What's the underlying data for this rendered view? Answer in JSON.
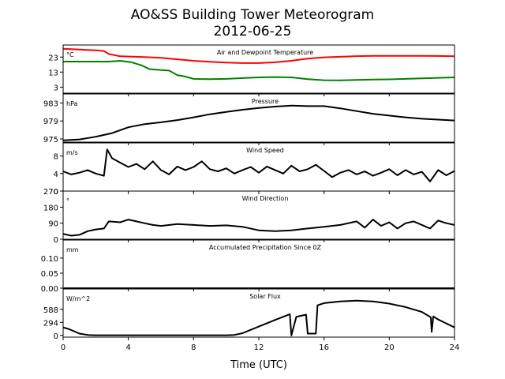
{
  "title": "AO&SS Building Tower Meteorogram",
  "subtitle": "2012-06-25",
  "xlabel": "Time (UTC)",
  "chart_data": [
    {
      "type": "line",
      "title": "Air and Dewpoint Temperature",
      "unit": "°C",
      "x_ticks": [
        0,
        4,
        8,
        12,
        16,
        20,
        24
      ],
      "xlim": [
        0,
        24
      ],
      "ylim": [
        -1,
        31
      ],
      "y_ticks": [
        3,
        13,
        23
      ],
      "series": [
        {
          "color": "#ff0000",
          "points": [
            [
              0,
              28.5
            ],
            [
              1,
              28
            ],
            [
              2,
              27.5
            ],
            [
              2.5,
              27
            ],
            [
              2.8,
              25
            ],
            [
              3.5,
              23.5
            ],
            [
              5,
              23
            ],
            [
              6,
              22.5
            ],
            [
              7,
              21.5
            ],
            [
              8,
              20.5
            ],
            [
              9,
              19.8
            ],
            [
              10,
              19.3
            ],
            [
              11,
              19
            ],
            [
              12,
              19
            ],
            [
              13,
              19.5
            ],
            [
              14,
              20.5
            ],
            [
              15,
              22
            ],
            [
              16,
              22.8
            ],
            [
              17,
              23.2
            ],
            [
              18,
              23.6
            ],
            [
              19,
              23.8
            ],
            [
              20,
              23.8
            ],
            [
              21,
              23.8
            ],
            [
              22,
              23.8
            ],
            [
              23,
              23.7
            ],
            [
              24,
              23.5
            ]
          ]
        },
        {
          "color": "#008000",
          "points": [
            [
              0,
              20
            ],
            [
              1,
              20
            ],
            [
              2,
              20
            ],
            [
              2.8,
              20
            ],
            [
              3.5,
              20.5
            ],
            [
              4.2,
              19.5
            ],
            [
              4.8,
              17.5
            ],
            [
              5.3,
              15
            ],
            [
              6,
              14.3
            ],
            [
              6.5,
              14
            ],
            [
              7,
              11
            ],
            [
              7.5,
              10
            ],
            [
              8,
              8.5
            ],
            [
              9,
              8.3
            ],
            [
              10,
              8.5
            ],
            [
              11,
              9
            ],
            [
              12,
              9.5
            ],
            [
              13,
              9.7
            ],
            [
              14,
              9.5
            ],
            [
              15,
              8.3
            ],
            [
              16,
              7.6
            ],
            [
              17,
              7.5
            ],
            [
              18,
              7.8
            ],
            [
              19,
              8
            ],
            [
              20,
              8.2
            ],
            [
              21,
              8.5
            ],
            [
              22,
              8.8
            ],
            [
              23,
              9.2
            ],
            [
              24,
              9.5
            ]
          ]
        }
      ]
    },
    {
      "type": "line",
      "title": "Pressure",
      "unit": "hPa",
      "x_ticks": [
        0,
        4,
        8,
        12,
        16,
        20,
        24
      ],
      "xlim": [
        0,
        24
      ],
      "ylim": [
        974.3,
        985.0
      ],
      "y_ticks": [
        975,
        979,
        983
      ],
      "series": [
        {
          "color": "#000000",
          "points": [
            [
              0,
              974.7
            ],
            [
              1,
              974.9
            ],
            [
              2,
              975.5
            ],
            [
              3,
              976.3
            ],
            [
              4,
              977.6
            ],
            [
              5,
              978.3
            ],
            [
              6,
              978.7
            ],
            [
              7,
              979.2
            ],
            [
              8,
              979.8
            ],
            [
              9,
              980.5
            ],
            [
              10,
              981.0
            ],
            [
              11,
              981.5
            ],
            [
              12,
              981.9
            ],
            [
              13,
              982.2
            ],
            [
              14,
              982.4
            ],
            [
              15,
              982.3
            ],
            [
              16,
              982.3
            ],
            [
              17,
              981.8
            ],
            [
              18,
              981.2
            ],
            [
              19,
              980.6
            ],
            [
              20,
              980.2
            ],
            [
              21,
              979.8
            ],
            [
              22,
              979.5
            ],
            [
              23,
              979.3
            ],
            [
              24,
              979.1
            ]
          ]
        }
      ]
    },
    {
      "type": "line",
      "title": "Wind Speed",
      "unit": "m/s",
      "x_ticks": [
        0,
        4,
        8,
        12,
        16,
        20,
        24
      ],
      "xlim": [
        0,
        24
      ],
      "ylim": [
        0,
        11
      ],
      "y_ticks": [
        0,
        4,
        8
      ],
      "series": [
        {
          "color": "#000000",
          "points": [
            [
              0,
              4.5
            ],
            [
              0.5,
              3.8
            ],
            [
              1,
              4.2
            ],
            [
              1.5,
              4.8
            ],
            [
              2,
              4.0
            ],
            [
              2.5,
              3.5
            ],
            [
              2.7,
              9.5
            ],
            [
              3,
              7.5
            ],
            [
              3.5,
              6.5
            ],
            [
              4,
              5.5
            ],
            [
              4.5,
              6.2
            ],
            [
              5,
              5.0
            ],
            [
              5.5,
              6.8
            ],
            [
              6,
              4.8
            ],
            [
              6.5,
              3.8
            ],
            [
              7,
              5.6
            ],
            [
              7.5,
              4.8
            ],
            [
              8,
              5.5
            ],
            [
              8.5,
              6.8
            ],
            [
              9,
              5.0
            ],
            [
              9.5,
              4.5
            ],
            [
              10,
              5.2
            ],
            [
              10.5,
              4.0
            ],
            [
              11,
              4.8
            ],
            [
              11.5,
              5.5
            ],
            [
              12,
              4.2
            ],
            [
              12.5,
              5.6
            ],
            [
              13,
              4.8
            ],
            [
              13.5,
              4.0
            ],
            [
              14,
              5.8
            ],
            [
              14.5,
              4.5
            ],
            [
              15,
              5.0
            ],
            [
              15.5,
              6.0
            ],
            [
              16,
              4.6
            ],
            [
              16.5,
              3.2
            ],
            [
              17,
              4.2
            ],
            [
              17.5,
              4.8
            ],
            [
              18,
              3.8
            ],
            [
              18.5,
              4.5
            ],
            [
              19,
              3.5
            ],
            [
              19.5,
              4.2
            ],
            [
              20,
              5.0
            ],
            [
              20.5,
              3.6
            ],
            [
              21,
              4.8
            ],
            [
              21.5,
              3.8
            ],
            [
              22,
              4.4
            ],
            [
              22.5,
              2.2
            ],
            [
              23,
              4.8
            ],
            [
              23.5,
              3.6
            ],
            [
              24,
              4.6
            ]
          ]
        }
      ]
    },
    {
      "type": "line",
      "title": "Wind Direction",
      "unit": "°",
      "x_ticks": [
        0,
        4,
        8,
        12,
        16,
        20,
        24
      ],
      "xlim": [
        0,
        24
      ],
      "ylim": [
        0,
        270
      ],
      "y_ticks": [
        0,
        90,
        180,
        270
      ],
      "series": [
        {
          "color": "#000000",
          "points": [
            [
              0,
              30
            ],
            [
              0.5,
              20
            ],
            [
              1,
              25
            ],
            [
              1.5,
              45
            ],
            [
              2,
              55
            ],
            [
              2.5,
              60
            ],
            [
              2.8,
              100
            ],
            [
              3.5,
              95
            ],
            [
              4,
              110
            ],
            [
              4.5,
              100
            ],
            [
              5,
              90
            ],
            [
              5.5,
              80
            ],
            [
              6,
              75
            ],
            [
              7,
              85
            ],
            [
              8,
              80
            ],
            [
              9,
              75
            ],
            [
              10,
              78
            ],
            [
              11,
              70
            ],
            [
              12,
              50
            ],
            [
              13,
              45
            ],
            [
              14,
              50
            ],
            [
              15,
              60
            ],
            [
              16,
              70
            ],
            [
              17,
              80
            ],
            [
              18,
              100
            ],
            [
              18.5,
              65
            ],
            [
              19,
              110
            ],
            [
              19.5,
              75
            ],
            [
              20,
              95
            ],
            [
              20.5,
              60
            ],
            [
              21,
              90
            ],
            [
              21.5,
              100
            ],
            [
              22,
              80
            ],
            [
              22.5,
              60
            ],
            [
              23,
              105
            ],
            [
              23.5,
              90
            ],
            [
              24,
              80
            ]
          ]
        }
      ]
    },
    {
      "type": "line",
      "title": "Accumulated Precipitation Since 0Z",
      "unit": "mm",
      "x_ticks": [
        0,
        4,
        8,
        12,
        16,
        20,
        24
      ],
      "xlim": [
        0,
        24
      ],
      "ylim": [
        0,
        0.16
      ],
      "y_ticks": [
        0.0,
        0.05,
        0.1
      ],
      "y_tick_labels": [
        "0.00",
        "0.05",
        "0.10"
      ],
      "series": [
        {
          "color": "#000000",
          "points": [
            [
              0,
              0
            ],
            [
              24,
              0
            ]
          ]
        }
      ]
    },
    {
      "type": "line",
      "title": "Solar Flux",
      "unit": "W/m^2",
      "x_ticks": [
        0,
        4,
        8,
        12,
        16,
        20,
        24
      ],
      "xlim": [
        0,
        24
      ],
      "ylim": [
        -40,
        1050
      ],
      "y_ticks": [
        0,
        294,
        588
      ],
      "series": [
        {
          "color": "#000000",
          "points": [
            [
              0,
              180
            ],
            [
              0.3,
              150
            ],
            [
              0.5,
              120
            ],
            [
              1,
              40
            ],
            [
              1.5,
              10
            ],
            [
              2,
              3
            ],
            [
              10,
              3
            ],
            [
              10.5,
              10
            ],
            [
              11,
              50
            ],
            [
              12,
              200
            ],
            [
              13,
              350
            ],
            [
              13.9,
              480
            ],
            [
              14,
              0
            ],
            [
              14.3,
              420
            ],
            [
              14.9,
              470
            ],
            [
              15,
              40
            ],
            [
              15.5,
              40
            ],
            [
              15.6,
              680
            ],
            [
              16,
              730
            ],
            [
              17,
              770
            ],
            [
              18,
              785
            ],
            [
              19,
              770
            ],
            [
              20,
              720
            ],
            [
              21,
              640
            ],
            [
              22,
              530
            ],
            [
              22.55,
              410
            ],
            [
              22.6,
              80
            ],
            [
              22.7,
              430
            ],
            [
              23,
              360
            ],
            [
              24,
              180
            ]
          ]
        }
      ]
    }
  ]
}
